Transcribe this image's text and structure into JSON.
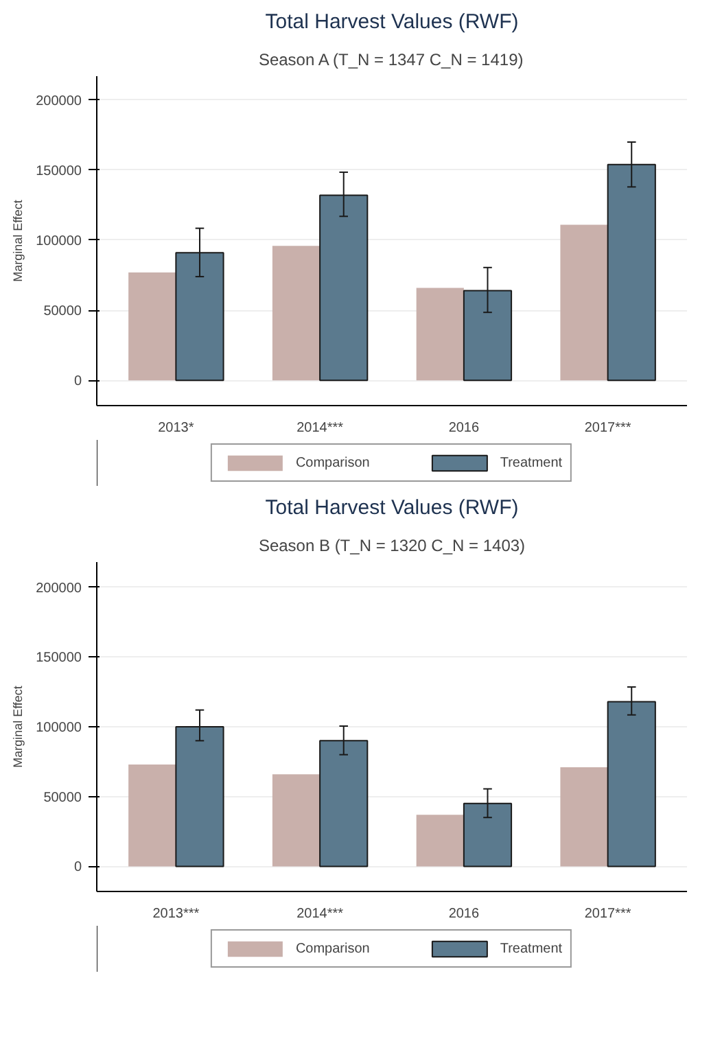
{
  "chart_data": [
    {
      "type": "bar",
      "title": "Total Harvest Values (RWF)",
      "subtitle": "Season A (T_N = 1347 C_N = 1419)",
      "ylabel": "Marginal Effect",
      "categories": [
        "2013*",
        "2014***",
        "2016",
        "2017***"
      ],
      "ylim": [
        -18000,
        217000
      ],
      "yticks": [
        0,
        50000,
        100000,
        150000,
        200000
      ],
      "grid": "y",
      "legend": "bottom",
      "series": [
        {
          "name": "Comparison",
          "color": "#c9b0ab",
          "values": [
            77000,
            96000,
            66000,
            111000
          ]
        },
        {
          "name": "Treatment",
          "color": "#5b7a8e",
          "values": [
            91000,
            132000,
            64000,
            154000
          ],
          "errors": [
            [
              74000,
              108500
            ],
            [
              117000,
              148500
            ],
            [
              48500,
              80500
            ],
            [
              138000,
              170000
            ]
          ]
        }
      ]
    },
    {
      "type": "bar",
      "title": "Total Harvest Values (RWF)",
      "subtitle": "Season B (T_N = 1320 C_N = 1403)",
      "ylabel": "Marginal Effect",
      "categories": [
        "2013***",
        "2014***",
        "2016",
        "2017***"
      ],
      "ylim": [
        -18000,
        218000
      ],
      "yticks": [
        0,
        50000,
        100000,
        150000,
        200000
      ],
      "grid": "y",
      "legend": "bottom",
      "series": [
        {
          "name": "Comparison",
          "color": "#c9b0ab",
          "values": [
            73000,
            66000,
            37000,
            71000
          ]
        },
        {
          "name": "Treatment",
          "color": "#5b7a8e",
          "values": [
            100000,
            90000,
            45000,
            118000
          ],
          "errors": [
            [
              90000,
              112000
            ],
            [
              80000,
              100500
            ],
            [
              35000,
              55500
            ],
            [
              108500,
              128500
            ]
          ]
        }
      ]
    }
  ]
}
